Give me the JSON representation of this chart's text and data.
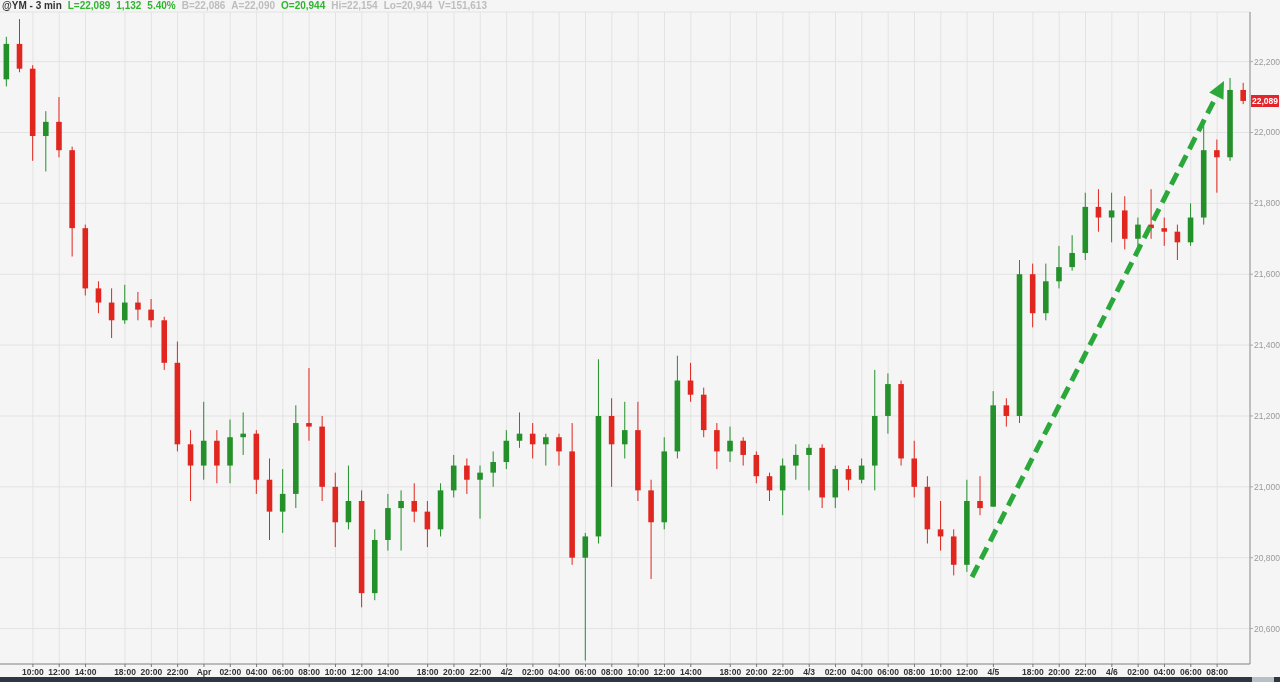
{
  "chart_data": {
    "type": "candlestick",
    "title": "@YM - 3 min",
    "annotations": [
      "L=22,089",
      "1,132",
      "5.40%",
      "B=22,086",
      "A=22,090",
      "O=20,944",
      "Hi=22,154",
      "Lo=20,944",
      "V=151,613",
      {
        "text": "22,089",
        "y": 22089
      }
    ],
    "categories": [
      null,
      null,
      "10:00",
      null,
      "12:00",
      null,
      "14:00",
      null,
      null,
      "18:00",
      null,
      "20:00",
      null,
      "22:00",
      null,
      "Apr",
      null,
      "02:00",
      null,
      "04:00",
      null,
      "06:00",
      null,
      "08:00",
      null,
      "10:00",
      null,
      "12:00",
      null,
      "14:00",
      null,
      null,
      "18:00",
      null,
      "20:00",
      null,
      "22:00",
      null,
      "4/2",
      null,
      "02:00",
      null,
      "04:00",
      null,
      "06:00",
      null,
      "08:00",
      null,
      "10:00",
      null,
      "12:00",
      null,
      "14:00",
      null,
      null,
      "18:00",
      null,
      "20:00",
      null,
      "22:00",
      null,
      "4/3",
      null,
      "02:00",
      null,
      "04:00",
      null,
      "06:00",
      null,
      "08:00",
      null,
      "10:00",
      null,
      "12:00",
      null,
      "4/5",
      null,
      null,
      "18:00",
      null,
      "20:00",
      null,
      "22:00",
      null,
      "4/6",
      null,
      "02:00",
      null,
      "04:00",
      null,
      "06:00",
      null,
      "08:00",
      null,
      null
    ],
    "ohlc": [
      [
        22150,
        22270,
        22130,
        22250
      ],
      [
        22250,
        22320,
        22170,
        22180
      ],
      [
        22180,
        22190,
        21920,
        21990
      ],
      [
        21990,
        22060,
        21890,
        22030
      ],
      [
        22030,
        22100,
        21930,
        21950
      ],
      [
        21950,
        21960,
        21650,
        21730
      ],
      [
        21730,
        21740,
        21540,
        21560
      ],
      [
        21560,
        21580,
        21490,
        21520
      ],
      [
        21520,
        21560,
        21420,
        21470
      ],
      [
        21470,
        21570,
        21460,
        21520
      ],
      [
        21520,
        21550,
        21470,
        21500
      ],
      [
        21500,
        21530,
        21450,
        21470
      ],
      [
        21470,
        21480,
        21330,
        21350
      ],
      [
        21350,
        21410,
        21100,
        21120
      ],
      [
        21120,
        21160,
        20960,
        21060
      ],
      [
        21060,
        21240,
        21020,
        21130
      ],
      [
        21130,
        21160,
        21010,
        21060
      ],
      [
        21060,
        21190,
        21010,
        21140
      ],
      [
        21140,
        21210,
        21090,
        21150
      ],
      [
        21150,
        21160,
        20980,
        21020
      ],
      [
        21020,
        21080,
        20850,
        20930
      ],
      [
        20930,
        21050,
        20870,
        20980
      ],
      [
        20980,
        21230,
        20940,
        21180
      ],
      [
        21180,
        21335,
        21130,
        21170
      ],
      [
        21170,
        21200,
        20960,
        21000
      ],
      [
        21000,
        21040,
        20830,
        20900
      ],
      [
        20900,
        21060,
        20880,
        20960
      ],
      [
        20960,
        20990,
        20660,
        20700
      ],
      [
        20700,
        20880,
        20680,
        20850
      ],
      [
        20850,
        20980,
        20820,
        20940
      ],
      [
        20940,
        20990,
        20820,
        20960
      ],
      [
        20960,
        21010,
        20900,
        20930
      ],
      [
        20930,
        20960,
        20830,
        20880
      ],
      [
        20880,
        21010,
        20860,
        20990
      ],
      [
        20990,
        21090,
        20970,
        21060
      ],
      [
        21060,
        21080,
        20980,
        21020
      ],
      [
        21020,
        21060,
        20910,
        21040
      ],
      [
        21040,
        21100,
        21000,
        21070
      ],
      [
        21070,
        21160,
        21050,
        21130
      ],
      [
        21130,
        21210,
        21110,
        21150
      ],
      [
        21150,
        21180,
        21080,
        21120
      ],
      [
        21120,
        21150,
        21060,
        21140
      ],
      [
        21140,
        21150,
        21060,
        21100
      ],
      [
        21100,
        21180,
        20780,
        20800
      ],
      [
        20800,
        20870,
        20510,
        20860
      ],
      [
        20860,
        21360,
        20840,
        21200
      ],
      [
        21200,
        21250,
        21000,
        21120
      ],
      [
        21120,
        21240,
        21080,
        21160
      ],
      [
        21160,
        21240,
        20960,
        20990
      ],
      [
        20990,
        21020,
        20740,
        20900
      ],
      [
        20900,
        21140,
        20880,
        21100
      ],
      [
        21100,
        21370,
        21080,
        21300
      ],
      [
        21300,
        21350,
        21240,
        21260
      ],
      [
        21260,
        21280,
        21140,
        21160
      ],
      [
        21160,
        21180,
        21050,
        21100
      ],
      [
        21100,
        21170,
        21070,
        21130
      ],
      [
        21130,
        21140,
        21060,
        21090
      ],
      [
        21090,
        21100,
        21010,
        21030
      ],
      [
        21030,
        21040,
        20960,
        20990
      ],
      [
        20990,
        21080,
        20920,
        21060
      ],
      [
        21060,
        21120,
        21020,
        21090
      ],
      [
        21090,
        21120,
        20990,
        21110
      ],
      [
        21110,
        21120,
        20940,
        20970
      ],
      [
        20970,
        21060,
        20940,
        21050
      ],
      [
        21050,
        21060,
        20990,
        21020
      ],
      [
        21020,
        21080,
        21010,
        21060
      ],
      [
        21060,
        21330,
        20990,
        21200
      ],
      [
        21200,
        21320,
        21150,
        21290
      ],
      [
        21290,
        21300,
        21060,
        21080
      ],
      [
        21080,
        21130,
        20970,
        21000
      ],
      [
        21000,
        21030,
        20840,
        20880
      ],
      [
        20880,
        20960,
        20820,
        20860
      ],
      [
        20860,
        20880,
        20750,
        20780
      ],
      [
        20780,
        21020,
        20760,
        20960
      ],
      [
        20960,
        21030,
        20920,
        20940
      ],
      [
        20944,
        21270,
        20944,
        21230
      ],
      [
        21230,
        21250,
        21170,
        21200
      ],
      [
        21200,
        21640,
        21180,
        21600
      ],
      [
        21600,
        21630,
        21450,
        21490
      ],
      [
        21490,
        21630,
        21470,
        21580
      ],
      [
        21580,
        21680,
        21560,
        21620
      ],
      [
        21620,
        21710,
        21610,
        21660
      ],
      [
        21660,
        21830,
        21640,
        21790
      ],
      [
        21790,
        21840,
        21720,
        21760
      ],
      [
        21760,
        21830,
        21690,
        21780
      ],
      [
        21780,
        21820,
        21670,
        21700
      ],
      [
        21700,
        21760,
        21670,
        21740
      ],
      [
        21740,
        21840,
        21700,
        21730
      ],
      [
        21730,
        21760,
        21680,
        21720
      ],
      [
        21720,
        21740,
        21640,
        21690
      ],
      [
        21690,
        21800,
        21680,
        21760
      ],
      [
        21760,
        22030,
        21740,
        21950
      ],
      [
        21950,
        21980,
        21830,
        21930
      ],
      [
        21930,
        22154,
        21920,
        22120
      ],
      [
        22120,
        22140,
        22080,
        22089
      ]
    ],
    "colors": [
      "#23902a",
      "#e0261e",
      "#e0261e",
      "#23902a",
      "#e0261e",
      "#e0261e",
      "#e0261e",
      "#e0261e",
      "#e0261e",
      "#23902a",
      "#e0261e",
      "#e0261e",
      "#e0261e",
      "#e0261e",
      "#e0261e",
      "#23902a",
      "#e0261e",
      "#23902a",
      "#23902a",
      "#e0261e",
      "#e0261e",
      "#23902a",
      "#23902a",
      "#e0261e",
      "#e0261e",
      "#e0261e",
      "#23902a",
      "#e0261e",
      "#23902a",
      "#23902a",
      "#23902a",
      "#e0261e",
      "#e0261e",
      "#23902a",
      "#23902a",
      "#e0261e",
      "#23902a",
      "#23902a",
      "#23902a",
      "#23902a",
      "#e0261e",
      "#23902a",
      "#e0261e",
      "#e0261e",
      "#23902a",
      "#23902a",
      "#e0261e",
      "#23902a",
      "#e0261e",
      "#e0261e",
      "#23902a",
      "#23902a",
      "#e0261e",
      "#e0261e",
      "#e0261e",
      "#23902a",
      "#e0261e",
      "#e0261e",
      "#e0261e",
      "#23902a",
      "#23902a",
      "#23902a",
      "#e0261e",
      "#23902a",
      "#e0261e",
      "#23902a",
      "#23902a",
      "#23902a",
      "#e0261e",
      "#e0261e",
      "#e0261e",
      "#e0261e",
      "#e0261e",
      "#23902a",
      "#e0261e",
      "#23902a",
      "#e0261e",
      "#23902a",
      "#e0261e",
      "#23902a",
      "#23902a",
      "#23902a",
      "#23902a",
      "#e0261e",
      "#23902a",
      "#e0261e",
      "#23902a",
      "#e0261e",
      "#e0261e",
      "#e0261e",
      "#23902a",
      "#23902a",
      "#e0261e",
      "#23902a",
      "#e0261e"
    ],
    "ylim": [
      20500,
      22340
    ],
    "yticks": [
      {
        "value": 20600,
        "label": "20,600"
      },
      {
        "value": 20800,
        "label": "20,800"
      },
      {
        "value": 21000,
        "label": "21,000"
      },
      {
        "value": 21200,
        "label": "21,200"
      },
      {
        "value": 21400,
        "label": "21,400"
      },
      {
        "value": 21600,
        "label": "21,600"
      },
      {
        "value": 21800,
        "label": "21,800"
      },
      {
        "value": 22000,
        "label": "22,000"
      },
      {
        "value": 22200,
        "label": "22,200"
      }
    ],
    "grid": true
  }
}
